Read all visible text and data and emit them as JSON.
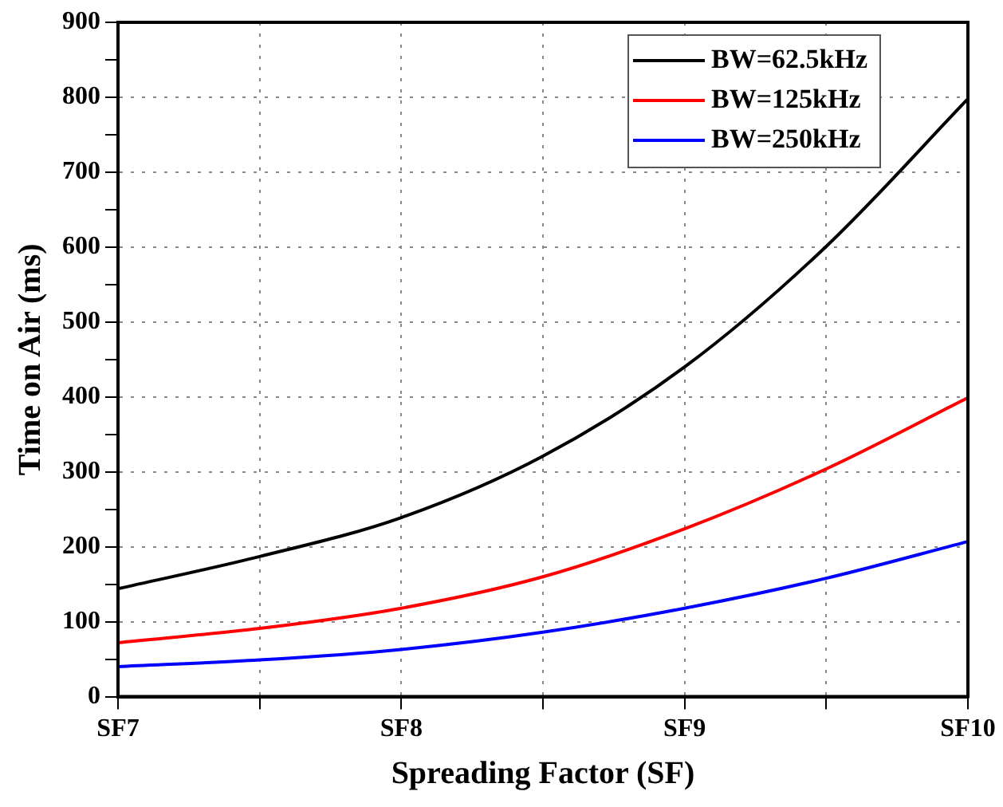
{
  "chart_data": {
    "type": "line",
    "xlabel": "Spreading Factor (SF)",
    "ylabel": "Time on Air (ms)",
    "categories": [
      "SF7",
      null,
      "SF8",
      null,
      "SF9",
      null,
      "SF10"
    ],
    "series": [
      {
        "name": "BW=62.5kHz",
        "color": "#000000",
        "values": [
          144,
          187,
          239,
          321,
          440,
          601,
          798
        ]
      },
      {
        "name": "BW=125kHz",
        "color": "#ff0000",
        "values": [
          72,
          91,
          118,
          160,
          224,
          304,
          399
        ]
      },
      {
        "name": "BW=250kHz",
        "color": "#0000ff",
        "values": [
          40,
          49,
          63,
          86,
          118,
          158,
          207
        ]
      }
    ],
    "ylim": [
      0,
      900
    ],
    "yticks": [
      0,
      {
        "value": 50,
        "label": null
      },
      100,
      {
        "value": 150,
        "label": null
      },
      200,
      {
        "value": 250,
        "label": null
      },
      300,
      {
        "value": 350,
        "label": null
      },
      400,
      {
        "value": 450,
        "label": null
      },
      500,
      {
        "value": 550,
        "label": null
      },
      600,
      {
        "value": 650,
        "label": null
      },
      700,
      {
        "value": 750,
        "label": null
      },
      800,
      {
        "value": 850,
        "label": null
      },
      900
    ],
    "grid": true,
    "legend": "top right",
    "marker": "none",
    "line_style": "solid"
  }
}
